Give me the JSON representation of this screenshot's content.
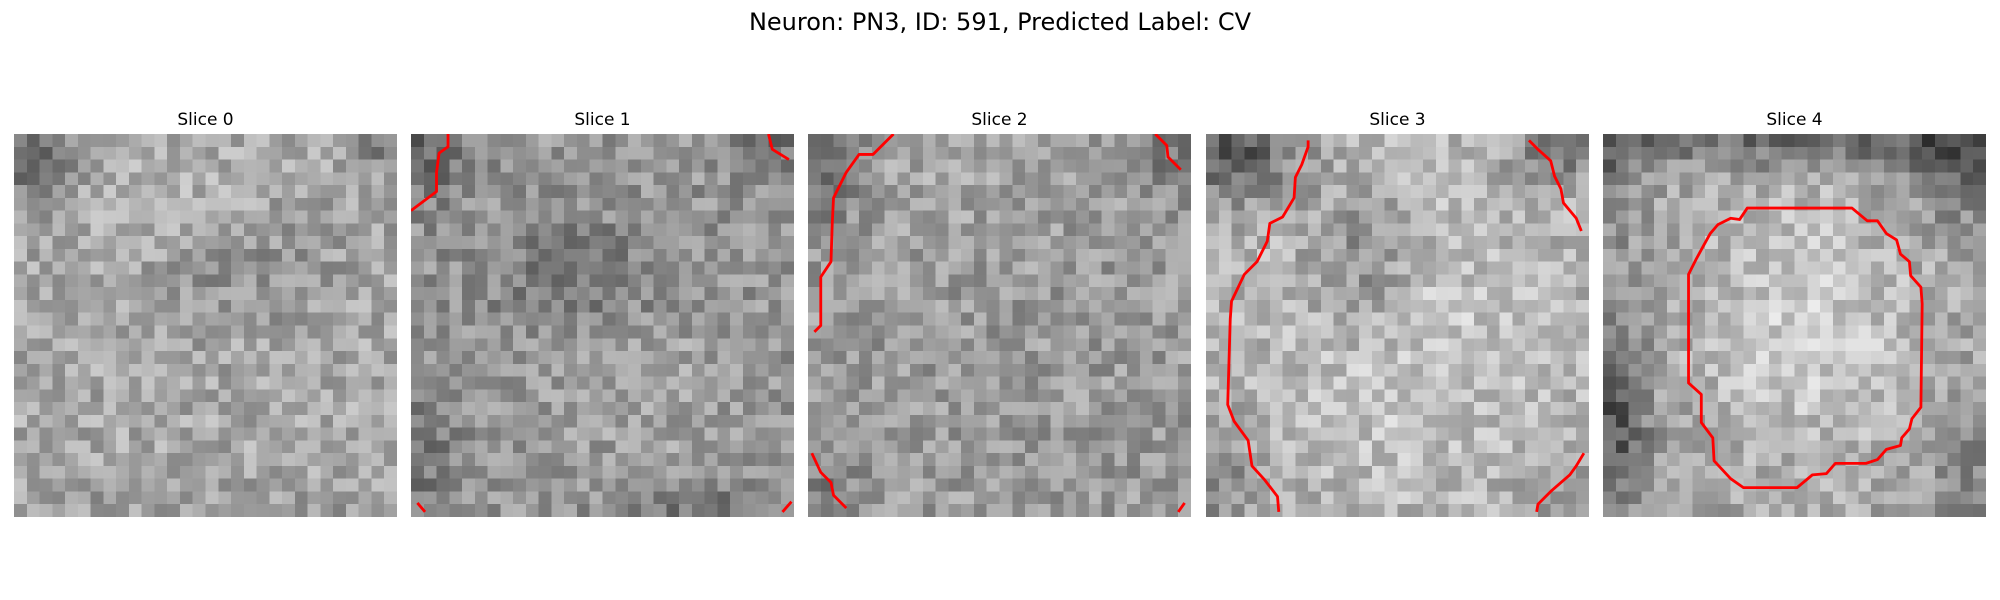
{
  "figure": {
    "title": "Neuron: PN3, ID: 591, Predicted Label: CV"
  },
  "panels": [
    {
      "title": "Slice 0",
      "image": {
        "colormap": "grayscale",
        "grid": [
          30,
          30
        ],
        "description_key": "slice-0"
      },
      "contours": []
    },
    {
      "title": "Slice 1",
      "image": {
        "colormap": "grayscale",
        "grid": [
          30,
          30
        ],
        "description_key": "slice-1"
      },
      "contours": [
        {
          "color": "#ff0000",
          "points": [
            [
              2.9,
              0
            ],
            [
              2.9,
              1
            ],
            [
              2.2,
              1.5
            ],
            [
              2,
              3
            ],
            [
              2,
              4.5
            ],
            [
              0,
              6
            ]
          ]
        },
        {
          "color": "#ff0000",
          "points": [
            [
              28,
              0
            ],
            [
              28.3,
              1.2
            ],
            [
              29.6,
              2
            ]
          ]
        },
        {
          "color": "#ff0000",
          "points": [
            [
              0.5,
              28.9
            ],
            [
              1.1,
              29.6
            ]
          ]
        },
        {
          "color": "#ff0000",
          "points": [
            [
              29.8,
              28.8
            ],
            [
              29.1,
              29.6
            ]
          ]
        }
      ]
    },
    {
      "title": "Slice 2",
      "image": {
        "colormap": "grayscale",
        "grid": [
          30,
          30
        ],
        "description_key": "slice-2"
      },
      "contours": [
        {
          "color": "#ff0000",
          "points": [
            [
              6.7,
              0
            ],
            [
              5.1,
              1.6
            ],
            [
              4,
              1.6
            ],
            [
              3,
              3
            ],
            [
              2,
              5
            ],
            [
              1.9,
              7
            ],
            [
              1.8,
              10
            ],
            [
              1,
              11.2
            ],
            [
              1,
              15
            ],
            [
              0.5,
              15.5
            ]
          ]
        },
        {
          "color": "#ff0000",
          "points": [
            [
              27.2,
              0
            ],
            [
              28.1,
              0.9
            ],
            [
              28.2,
              1.8
            ],
            [
              29.2,
              2.8
            ]
          ]
        },
        {
          "color": "#ff0000",
          "points": [
            [
              0.3,
              25
            ],
            [
              1,
              26.5
            ],
            [
              1.8,
              27.3
            ],
            [
              2,
              28.3
            ],
            [
              3,
              29.3
            ]
          ]
        },
        {
          "color": "#ff0000",
          "points": [
            [
              29.5,
              28.9
            ],
            [
              29,
              29.6
            ]
          ]
        }
      ]
    },
    {
      "title": "Slice 3",
      "image": {
        "colormap": "grayscale",
        "grid": [
          30,
          30
        ],
        "description_key": "slice-3"
      },
      "contours": [
        {
          "color": "#ff0000",
          "points": [
            [
              8,
              0.5
            ],
            [
              8,
              1
            ],
            [
              7.5,
              2.4
            ],
            [
              7,
              3.4
            ],
            [
              6.9,
              5
            ],
            [
              6,
              6.5
            ],
            [
              5,
              7
            ],
            [
              4.8,
              8.4
            ],
            [
              4,
              10
            ],
            [
              3,
              11
            ],
            [
              2,
              13.1
            ],
            [
              1.9,
              14.5
            ],
            [
              1.7,
              21.2
            ],
            [
              2.2,
              22.5
            ],
            [
              3.3,
              24
            ],
            [
              3.6,
              26
            ],
            [
              4.6,
              27.1
            ],
            [
              5.6,
              28.4
            ],
            [
              5.7,
              29.6
            ]
          ]
        },
        {
          "color": "#ff0000",
          "points": [
            [
              25.3,
              0.5
            ],
            [
              26,
              1.2
            ],
            [
              27,
              2.1
            ],
            [
              27.3,
              3.3
            ],
            [
              27.8,
              4.3
            ],
            [
              28,
              5.4
            ],
            [
              29,
              6.6
            ],
            [
              29.4,
              7.6
            ]
          ]
        },
        {
          "color": "#ff0000",
          "points": [
            [
              29.6,
              25
            ],
            [
              29,
              26
            ],
            [
              28.5,
              26.7
            ],
            [
              27,
              28
            ],
            [
              26,
              29
            ],
            [
              25.9,
              29.6
            ]
          ]
        }
      ]
    },
    {
      "title": "Slice 4",
      "image": {
        "colormap": "grayscale",
        "grid": [
          30,
          30
        ],
        "description_key": "slice-4"
      },
      "contours": [
        {
          "color": "#ff0000",
          "points": [
            [
              12,
              5.8
            ],
            [
              19.5,
              5.8
            ],
            [
              20.7,
              6.8
            ],
            [
              21.5,
              6.8
            ],
            [
              22.2,
              7.8
            ],
            [
              23,
              8.3
            ],
            [
              23.3,
              9.4
            ],
            [
              24,
              10
            ],
            [
              24.1,
              11.1
            ],
            [
              24.9,
              12
            ],
            [
              25,
              13.3
            ],
            [
              24.9,
              21.4
            ],
            [
              24.2,
              22.3
            ],
            [
              24,
              23.1
            ],
            [
              23.4,
              23.8
            ],
            [
              23.3,
              24.4
            ],
            [
              22.2,
              24.7
            ],
            [
              21.5,
              25.5
            ],
            [
              20.6,
              25.8
            ],
            [
              18.2,
              25.8
            ],
            [
              17.5,
              26.6
            ],
            [
              16.4,
              26.7
            ],
            [
              15.2,
              27.7
            ],
            [
              11,
              27.7
            ],
            [
              10,
              27
            ],
            [
              8.7,
              25.6
            ],
            [
              8.6,
              23.8
            ],
            [
              7.7,
              22.6
            ],
            [
              7.7,
              20.4
            ],
            [
              6.7,
              19.5
            ],
            [
              6.7,
              11
            ],
            [
              7.3,
              9.8
            ],
            [
              7.9,
              8.7
            ],
            [
              8.4,
              7.8
            ],
            [
              9,
              7.1
            ],
            [
              10,
              6.6
            ],
            [
              10.7,
              6.7
            ],
            [
              11.3,
              5.8
            ],
            [
              12,
              5.8
            ]
          ]
        }
      ]
    }
  ]
}
